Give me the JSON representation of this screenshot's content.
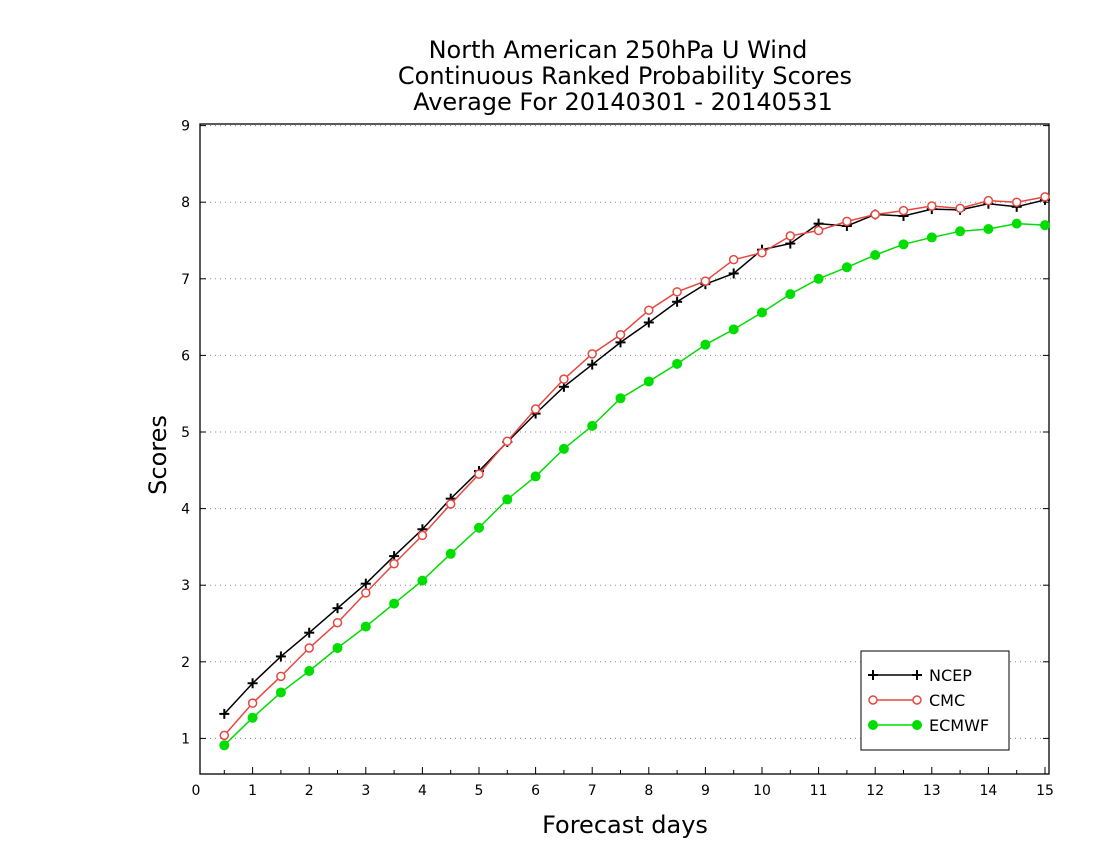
{
  "chart_data": {
    "type": "line",
    "title": [
      "North American 250hPa U Wind",
      "Continuous Ranked Probability Scores",
      "Average For 20140301 - 20140531"
    ],
    "xlabel": "Forecast days",
    "ylabel": "Scores",
    "xlim": [
      0,
      15
    ],
    "ylim": [
      0.5,
      9
    ],
    "xticks": [
      0,
      1,
      2,
      3,
      4,
      5,
      6,
      7,
      8,
      9,
      10,
      11,
      12,
      13,
      14,
      15
    ],
    "yticks": [
      1,
      2,
      3,
      4,
      5,
      6,
      7,
      8,
      9
    ],
    "grid": "horizontal dotted",
    "legend_position": "bottom-right",
    "x": [
      0.5,
      1,
      1.5,
      2,
      2.5,
      3,
      3.5,
      4,
      4.5,
      5,
      5.5,
      6,
      6.5,
      7,
      7.5,
      8,
      8.5,
      9,
      9.5,
      10,
      10.5,
      11,
      11.5,
      12,
      12.5,
      13,
      13.5,
      14,
      14.5,
      15
    ],
    "series": [
      {
        "name": "NCEP",
        "color": "#000000",
        "marker": "plus",
        "values": [
          1.32,
          1.72,
          2.07,
          2.38,
          2.7,
          3.02,
          3.38,
          3.73,
          4.13,
          4.49,
          4.87,
          5.24,
          5.59,
          5.88,
          6.17,
          6.43,
          6.7,
          6.93,
          7.07,
          7.38,
          7.46,
          7.72,
          7.69,
          7.84,
          7.82,
          7.91,
          7.9,
          7.98,
          7.94,
          8.03
        ]
      },
      {
        "name": "CMC",
        "color": "#e8473f",
        "marker": "open-circle",
        "values": [
          1.04,
          1.46,
          1.81,
          2.18,
          2.51,
          2.9,
          3.28,
          3.65,
          4.06,
          4.45,
          4.88,
          5.3,
          5.69,
          6.02,
          6.27,
          6.59,
          6.83,
          6.97,
          7.25,
          7.34,
          7.56,
          7.63,
          7.75,
          7.84,
          7.89,
          7.95,
          7.92,
          8.02,
          8.0,
          8.07
        ]
      },
      {
        "name": "ECMWF",
        "color": "#00dd00",
        "marker": "filled-circle",
        "values": [
          0.91,
          1.27,
          1.6,
          1.88,
          2.18,
          2.46,
          2.76,
          3.06,
          3.41,
          3.75,
          4.12,
          4.42,
          4.78,
          5.08,
          5.44,
          5.66,
          5.89,
          6.14,
          6.34,
          6.56,
          6.8,
          7.0,
          7.15,
          7.31,
          7.45,
          7.54,
          7.62,
          7.65,
          7.72,
          7.7
        ]
      }
    ]
  }
}
